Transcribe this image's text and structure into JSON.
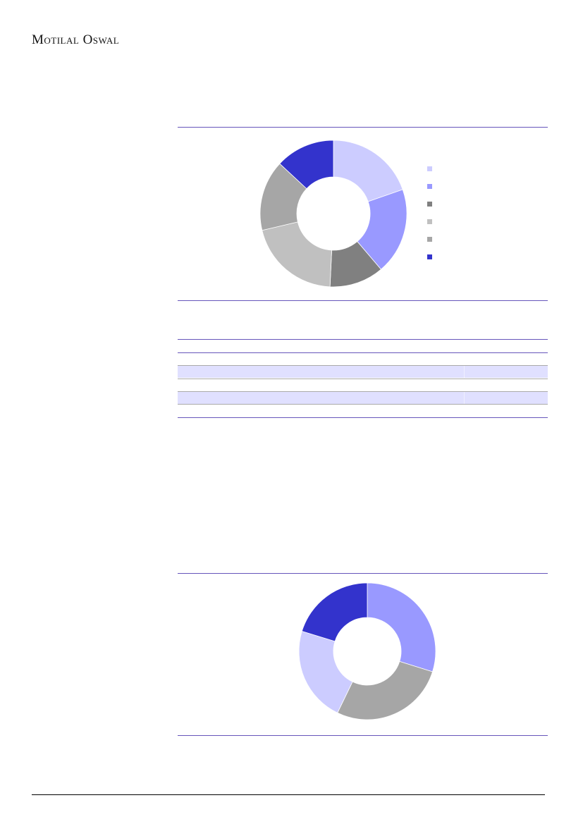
{
  "header": {
    "logo_text": "Motilal Oswal"
  },
  "chart_data": [
    {
      "type": "pie",
      "donut": true,
      "values": [
        19.7,
        19.1,
        12.0,
        20.6,
        15.6,
        13.1
      ],
      "colors": [
        "#ccccff",
        "#9999ff",
        "#808080",
        "#c0c0c0",
        "#a6a6a6",
        "#3333cc"
      ],
      "legend": "right"
    },
    {
      "type": "pie",
      "donut": true,
      "values": [
        29.9,
        27.4,
        22.6,
        20.3
      ],
      "colors": [
        "#9999ff",
        "#a6a6a6",
        "#ccccff",
        "#3333cc"
      ],
      "legend": "none"
    }
  ],
  "colors": {
    "rule": "#6655bb",
    "table_band": "#e0e0ff"
  }
}
